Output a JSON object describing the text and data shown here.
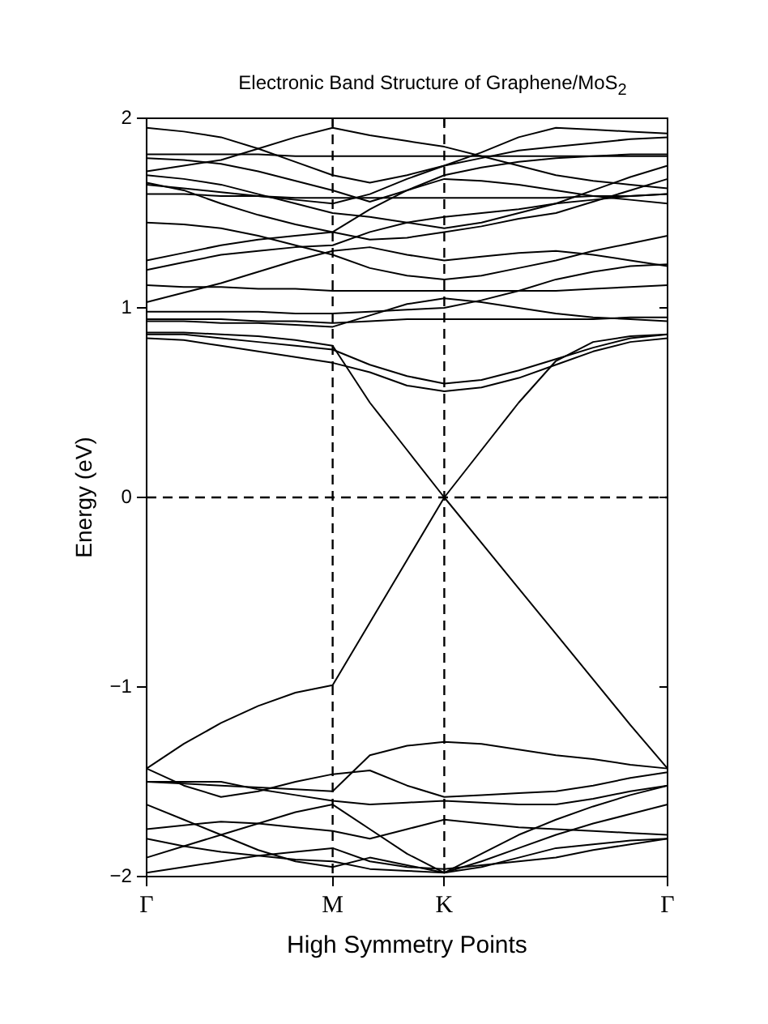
{
  "chart_data": {
    "type": "line",
    "title": "Electronic Band Structure of Graphene/MoS$_{2}$",
    "xlabel": "High Symmetry Points",
    "ylabel": "Energy (eV)",
    "categories": [
      "Γ",
      null,
      null,
      null,
      null,
      "M",
      null,
      null,
      "K",
      null,
      null,
      null,
      null,
      null,
      "Γ"
    ],
    "ylim": [
      -2,
      2
    ],
    "yticks": [
      -2,
      -1,
      0,
      1,
      2
    ],
    "grid": false,
    "legend": false,
    "marker": "none",
    "line_style": "solid",
    "ref_lines": [
      {
        "axis": "x",
        "value": "M",
        "color": "#000000",
        "line_style": "dashed"
      },
      {
        "axis": "x",
        "value": "K",
        "color": "#000000",
        "line_style": "dashed"
      },
      {
        "axis": "y",
        "value": 0,
        "color": "#000000",
        "line_style": "dashed"
      }
    ],
    "series": [
      {
        "color": "#000000",
        "values": [
          0.87,
          0.87,
          0.86,
          0.85,
          0.83,
          0.8,
          0.5,
          0.25,
          0,
          0.25,
          0.5,
          0.72,
          0.82,
          0.85,
          0.86
        ]
      },
      {
        "color": "#000000",
        "values": [
          0.86,
          0.86,
          0.84,
          0.82,
          0.8,
          0.78,
          0.7,
          0.64,
          0.6,
          0.62,
          0.67,
          0.73,
          0.79,
          0.84,
          0.86
        ]
      },
      {
        "color": "#000000",
        "values": [
          0.84,
          0.83,
          0.8,
          0.77,
          0.74,
          0.71,
          0.66,
          0.59,
          0.56,
          0.58,
          0.63,
          0.7,
          0.77,
          0.82,
          0.84
        ]
      },
      {
        "color": "#000000",
        "values": [
          0.93,
          0.93,
          0.92,
          0.92,
          0.91,
          0.9,
          0.96,
          1.02,
          1.05,
          1.03,
          1.0,
          0.97,
          0.95,
          0.94,
          0.93
        ]
      },
      {
        "color": "#000000",
        "values": [
          0.94,
          0.94,
          0.94,
          0.93,
          0.93,
          0.92,
          0.93,
          0.94,
          0.94,
          0.94,
          0.94,
          0.94,
          0.94,
          0.95,
          0.95
        ]
      },
      {
        "color": "#000000",
        "values": [
          0.98,
          0.98,
          0.98,
          0.98,
          0.97,
          0.97,
          0.98,
          0.99,
          1.0,
          1.04,
          1.09,
          1.15,
          1.19,
          1.22,
          1.23
        ]
      },
      {
        "color": "#000000",
        "values": [
          1.03,
          1.08,
          1.13,
          1.19,
          1.25,
          1.3,
          1.32,
          1.28,
          1.25,
          1.27,
          1.29,
          1.3,
          1.28,
          1.25,
          1.22
        ]
      },
      {
        "color": "#000000",
        "values": [
          1.12,
          1.11,
          1.11,
          1.1,
          1.1,
          1.09,
          1.09,
          1.09,
          1.09,
          1.09,
          1.09,
          1.09,
          1.1,
          1.11,
          1.12
        ]
      },
      {
        "color": "#000000",
        "values": [
          1.2,
          1.24,
          1.28,
          1.3,
          1.32,
          1.33,
          1.4,
          1.45,
          1.48,
          1.5,
          1.52,
          1.55,
          1.57,
          1.59,
          1.6
        ]
      },
      {
        "color": "#000000",
        "values": [
          1.25,
          1.29,
          1.33,
          1.36,
          1.38,
          1.4,
          1.52,
          1.62,
          1.68,
          1.67,
          1.65,
          1.62,
          1.59,
          1.57,
          1.55
        ]
      },
      {
        "color": "#000000",
        "values": [
          1.45,
          1.44,
          1.42,
          1.38,
          1.33,
          1.28,
          1.21,
          1.17,
          1.15,
          1.17,
          1.21,
          1.25,
          1.3,
          1.34,
          1.38
        ]
      },
      {
        "color": "#000000",
        "values": [
          1.6,
          1.6,
          1.59,
          1.59,
          1.58,
          1.58,
          1.58,
          1.58,
          1.58,
          1.58,
          1.58,
          1.58,
          1.59,
          1.59,
          1.6
        ]
      },
      {
        "color": "#000000",
        "values": [
          1.66,
          1.62,
          1.55,
          1.49,
          1.44,
          1.4,
          1.36,
          1.37,
          1.4,
          1.43,
          1.47,
          1.5,
          1.56,
          1.62,
          1.68
        ]
      },
      {
        "color": "#000000",
        "values": [
          1.65,
          1.63,
          1.61,
          1.59,
          1.57,
          1.55,
          1.6,
          1.68,
          1.75,
          1.79,
          1.83,
          1.85,
          1.87,
          1.89,
          1.9
        ]
      },
      {
        "color": "#000000",
        "values": [
          1.7,
          1.68,
          1.65,
          1.6,
          1.55,
          1.5,
          1.48,
          1.45,
          1.42,
          1.45,
          1.5,
          1.55,
          1.62,
          1.69,
          1.75
        ]
      },
      {
        "color": "#000000",
        "values": [
          1.72,
          1.75,
          1.78,
          1.84,
          1.9,
          1.95,
          1.91,
          1.88,
          1.85,
          1.8,
          1.75,
          1.7,
          1.67,
          1.65,
          1.63
        ]
      },
      {
        "color": "#000000",
        "values": [
          1.79,
          1.78,
          1.76,
          1.72,
          1.67,
          1.62,
          1.56,
          1.62,
          1.7,
          1.74,
          1.77,
          1.79,
          1.8,
          1.8,
          1.8
        ]
      },
      {
        "color": "#000000",
        "values": [
          1.81,
          1.81,
          1.81,
          1.81,
          1.8,
          1.8,
          1.8,
          1.8,
          1.8,
          1.8,
          1.8,
          1.8,
          1.8,
          1.81,
          1.81
        ]
      },
      {
        "color": "#000000",
        "values": [
          1.95,
          1.93,
          1.9,
          1.84,
          1.77,
          1.7,
          1.66,
          1.7,
          1.75,
          1.82,
          1.9,
          1.95,
          1.94,
          1.93,
          1.92
        ]
      },
      {
        "color": "#000000",
        "values": [
          -1.43,
          -1.3,
          -1.19,
          -1.1,
          -1.03,
          -0.99,
          -0.66,
          -0.33,
          0,
          -0.24,
          -0.48,
          -0.72,
          -0.96,
          -1.2,
          -1.43
        ]
      },
      {
        "color": "#000000",
        "values": [
          -1.5,
          -1.51,
          -1.52,
          -1.53,
          -1.54,
          -1.55,
          -1.36,
          -1.31,
          -1.29,
          -1.3,
          -1.33,
          -1.36,
          -1.38,
          -1.41,
          -1.43
        ]
      },
      {
        "color": "#000000",
        "values": [
          -1.43,
          -1.52,
          -1.58,
          -1.55,
          -1.5,
          -1.46,
          -1.44,
          -1.52,
          -1.58,
          -1.57,
          -1.56,
          -1.55,
          -1.52,
          -1.48,
          -1.45
        ]
      },
      {
        "color": "#000000",
        "values": [
          -1.5,
          -1.5,
          -1.5,
          -1.54,
          -1.57,
          -1.6,
          -1.62,
          -1.61,
          -1.6,
          -1.61,
          -1.62,
          -1.62,
          -1.59,
          -1.55,
          -1.52
        ]
      },
      {
        "color": "#000000",
        "values": [
          -1.62,
          -1.7,
          -1.78,
          -1.86,
          -1.92,
          -1.95,
          -1.9,
          -1.94,
          -1.98,
          -1.92,
          -1.85,
          -1.78,
          -1.72,
          -1.67,
          -1.62
        ]
      },
      {
        "color": "#000000",
        "values": [
          -1.75,
          -1.73,
          -1.71,
          -1.72,
          -1.74,
          -1.76,
          -1.8,
          -1.75,
          -1.7,
          -1.72,
          -1.74,
          -1.75,
          -1.76,
          -1.77,
          -1.78
        ]
      },
      {
        "color": "#000000",
        "values": [
          -1.8,
          -1.84,
          -1.87,
          -1.89,
          -1.91,
          -1.92,
          -1.96,
          -1.97,
          -1.98,
          -1.95,
          -1.9,
          -1.85,
          -1.83,
          -1.81,
          -1.8
        ]
      },
      {
        "color": "#000000",
        "values": [
          -1.9,
          -1.84,
          -1.78,
          -1.72,
          -1.66,
          -1.62,
          -1.75,
          -1.88,
          -1.98,
          -1.88,
          -1.78,
          -1.7,
          -1.63,
          -1.57,
          -1.52
        ]
      },
      {
        "color": "#000000",
        "values": [
          -1.98,
          -1.95,
          -1.92,
          -1.89,
          -1.87,
          -1.85,
          -1.92,
          -1.95,
          -1.96,
          -1.94,
          -1.92,
          -1.9,
          -1.86,
          -1.83,
          -1.8
        ]
      }
    ]
  }
}
